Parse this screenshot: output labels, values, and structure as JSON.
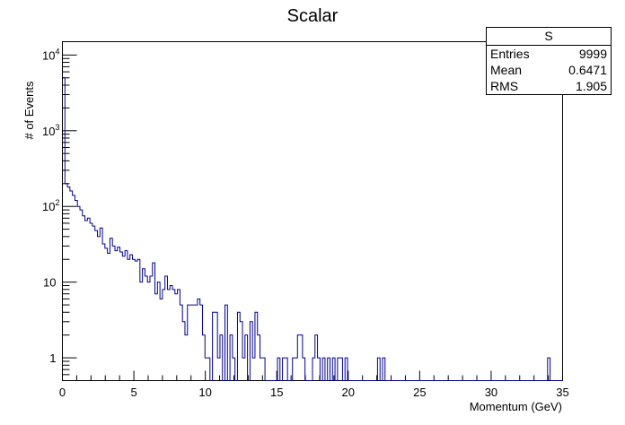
{
  "chart_data": {
    "type": "histogram",
    "title": "Scalar",
    "xlabel": "Momentum (GeV)",
    "ylabel": "# of Events",
    "xlim": [
      0,
      35
    ],
    "ylim": [
      0.5,
      15000
    ],
    "y_scale": "log",
    "x_ticks": [
      0,
      5,
      10,
      15,
      20,
      25,
      30,
      35
    ],
    "y_ticks": [
      {
        "value": 1,
        "label": "1"
      },
      {
        "value": 10,
        "label": "10"
      },
      {
        "value": 100,
        "label": "10",
        "exponent": "2"
      },
      {
        "value": 1000,
        "label": "10",
        "exponent": "3"
      },
      {
        "value": 10000,
        "label": "10",
        "exponent": "4"
      }
    ],
    "bin_width": 0.175,
    "bin_values": [
      5000,
      200,
      180,
      160,
      140,
      120,
      100,
      90,
      75,
      65,
      70,
      60,
      55,
      48,
      40,
      52,
      32,
      28,
      24,
      38,
      30,
      26,
      29,
      25,
      22,
      26,
      20,
      23,
      20,
      19,
      20,
      10,
      15,
      12,
      10,
      12,
      18,
      7,
      10,
      6,
      8,
      12,
      8,
      9,
      8,
      7,
      8,
      5,
      3,
      2,
      5,
      5,
      5,
      5,
      6,
      5,
      2,
      1,
      1,
      0,
      4,
      4,
      1,
      2,
      0,
      5,
      0,
      2,
      1,
      0,
      4,
      3,
      1,
      2,
      0,
      3,
      1,
      4,
      2,
      1,
      1,
      0,
      0,
      0,
      0,
      0,
      1,
      0,
      1,
      1,
      0,
      0,
      1,
      1,
      2,
      2,
      1,
      0,
      0,
      0,
      1,
      2,
      1,
      0,
      1,
      0,
      1,
      0,
      1,
      0,
      1,
      1,
      0,
      1,
      0,
      0,
      0,
      0,
      0,
      0,
      0,
      0,
      0,
      0,
      0,
      0,
      1,
      0,
      1,
      0,
      0,
      0,
      0,
      0,
      0,
      0,
      0,
      0,
      0,
      0,
      0,
      0,
      0,
      0,
      0,
      0,
      0,
      0,
      0,
      0,
      0,
      0,
      0,
      0,
      0,
      0,
      0,
      0,
      0,
      0,
      0,
      0,
      0,
      0,
      0,
      0,
      0,
      0,
      0,
      0,
      0,
      0,
      0,
      0,
      0,
      0,
      0,
      0,
      0,
      0,
      0,
      0,
      0,
      0,
      0,
      0,
      0,
      0,
      0,
      0,
      0,
      0,
      0,
      0,
      1,
      0,
      0,
      0,
      0,
      0
    ],
    "line_color": "#000099",
    "stats_box": {
      "title": "S",
      "entries_label": "Entries",
      "entries": "9999",
      "mean_label": "Mean",
      "mean": "0.6471",
      "rms_label": "RMS",
      "rms": "1.905"
    }
  }
}
